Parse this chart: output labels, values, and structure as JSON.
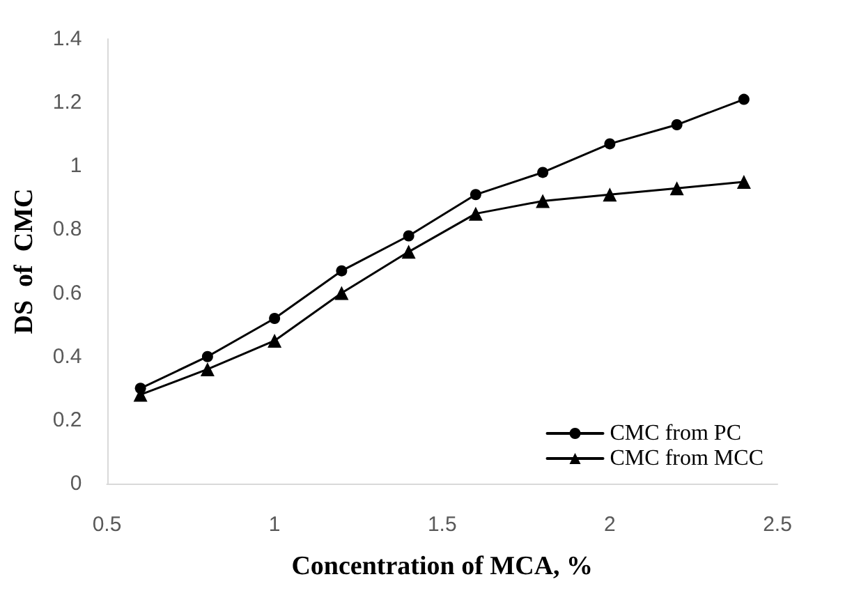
{
  "chart_data": {
    "type": "line",
    "xlabel": "Concentration of MCA, %",
    "ylabel": "DS  of  CMC",
    "x": [
      0.6,
      0.8,
      1.0,
      1.2,
      1.4,
      1.6,
      1.8,
      2.0,
      2.2,
      2.4
    ],
    "series": [
      {
        "name": "CMC from PC",
        "color": "#000000",
        "marker": "circle",
        "values": [
          0.3,
          0.4,
          0.52,
          0.67,
          0.78,
          0.91,
          0.98,
          1.07,
          1.13,
          1.21
        ]
      },
      {
        "name": "CMC from MCC",
        "color": "#000000",
        "marker": "triangle",
        "values": [
          0.28,
          0.36,
          0.45,
          0.6,
          0.73,
          0.85,
          0.89,
          0.91,
          0.93,
          0.95
        ]
      }
    ],
    "xlim": [
      0.5,
      2.5
    ],
    "xticks": [
      0.5,
      1,
      1.5,
      2,
      2.5
    ],
    "ylim": [
      0,
      1.4
    ],
    "yticks": [
      0,
      0.2,
      0.4,
      0.6,
      0.8,
      1,
      1.2,
      1.4
    ],
    "grid": false,
    "legend": "bottom right",
    "line_style": "solid"
  }
}
